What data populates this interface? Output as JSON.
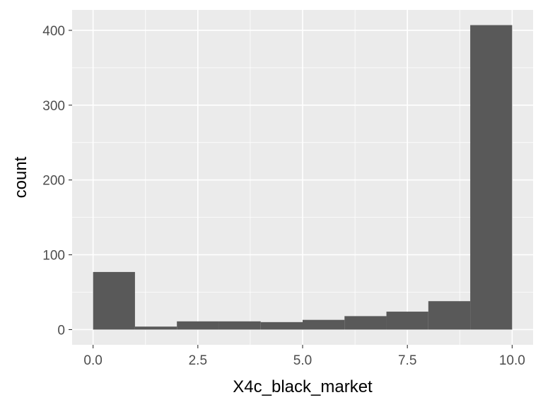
{
  "chart_data": {
    "type": "bar",
    "subtype": "histogram",
    "title": "",
    "xlabel": "X4c_black_market",
    "ylabel": "count",
    "bin_width": 1,
    "bins": [
      {
        "x_start": 0,
        "x_end": 1,
        "count": 77
      },
      {
        "x_start": 1,
        "x_end": 2,
        "count": 4
      },
      {
        "x_start": 2,
        "x_end": 3,
        "count": 11
      },
      {
        "x_start": 3,
        "x_end": 4,
        "count": 11
      },
      {
        "x_start": 4,
        "x_end": 5,
        "count": 10
      },
      {
        "x_start": 5,
        "x_end": 6,
        "count": 13
      },
      {
        "x_start": 6,
        "x_end": 7,
        "count": 18
      },
      {
        "x_start": 7,
        "x_end": 8,
        "count": 24
      },
      {
        "x_start": 8,
        "x_end": 9,
        "count": 38
      },
      {
        "x_start": 9,
        "x_end": 10,
        "count": 407
      }
    ],
    "xlim": [
      -0.5,
      10.5
    ],
    "ylim": [
      -20.35,
      427.35
    ],
    "x_ticks": [
      0,
      2.5,
      5,
      7.5,
      10
    ],
    "x_tick_labels": [
      "0.0",
      "2.5",
      "5.0",
      "7.5",
      "10.0"
    ],
    "y_ticks": [
      0,
      100,
      200,
      300,
      400
    ],
    "y_tick_labels": [
      "0",
      "100",
      "200",
      "300",
      "400"
    ],
    "grid": true,
    "legend": "none",
    "colors": {
      "bar_fill": "#595959",
      "panel_background": "#ebebeb",
      "grid_major": "#ffffff",
      "tick_text": "#4d4d4d",
      "tick_mark": "#333333",
      "axis_title": "#000000"
    }
  }
}
